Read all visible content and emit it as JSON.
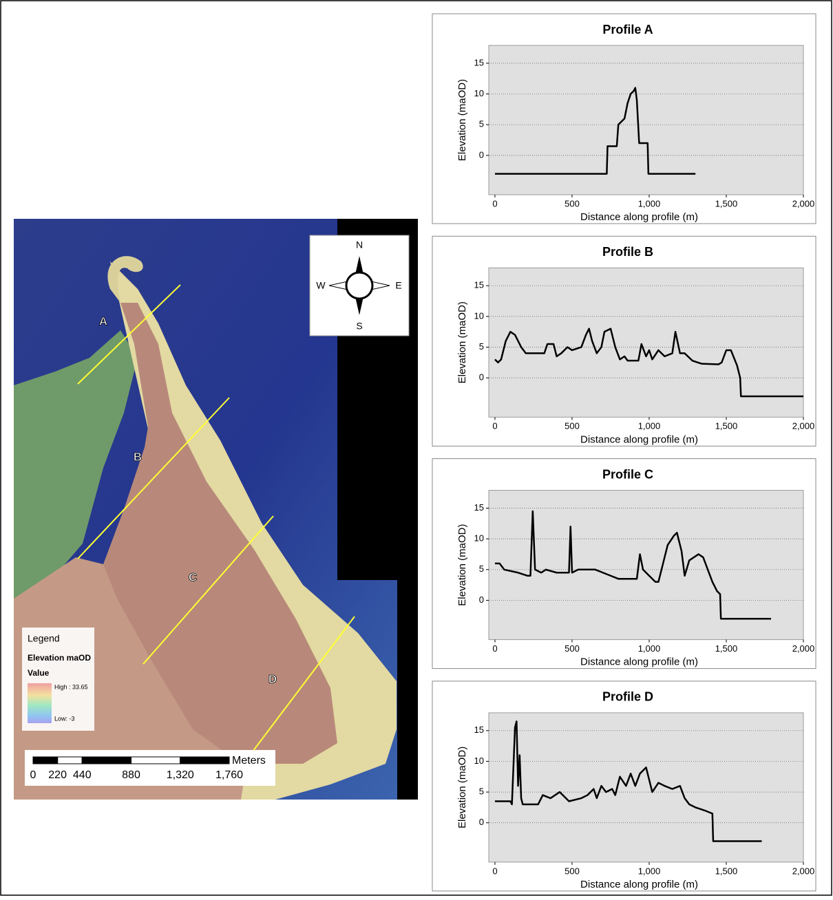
{
  "map": {
    "profile_labels": [
      "A",
      "B",
      "C",
      "D"
    ],
    "compass": {
      "n": "N",
      "e": "E",
      "s": "S",
      "w": "W"
    },
    "legend": {
      "title": "Legend",
      "layer": "Elevation maOD",
      "field": "Value",
      "high": "High : 33.65",
      "low": "Low: -3"
    },
    "scale": {
      "unit": "Meters",
      "lim": [
        0,
        1760
      ],
      "ticks": [
        0,
        220,
        440,
        880,
        {
          "value": 1320,
          "label": "1,320"
        },
        {
          "value": 1760,
          "label": "1,760"
        }
      ]
    }
  },
  "chart_data": [
    {
      "type": "line",
      "title": "Profile A",
      "x_label": "Distance along profile (m)",
      "y_label": "Elevation (maOD)",
      "color": "#000000",
      "grid": true,
      "xlim": [
        -40,
        2000
      ],
      "ylim": [
        -6.4,
        17.9
      ],
      "xticks": [
        0,
        500,
        {
          "value": 1000,
          "label": "1,000"
        },
        {
          "value": 1500,
          "label": "1,500"
        },
        {
          "value": 2000,
          "label": "2,000"
        }
      ],
      "yticks": [
        0,
        5,
        10,
        15
      ],
      "x": [
        0,
        725,
        730,
        790,
        800,
        840,
        860,
        880,
        900,
        910,
        920,
        935,
        990,
        995,
        1300
      ],
      "values": [
        -3,
        -3,
        1.5,
        1.5,
        5,
        6,
        8.5,
        10,
        10.5,
        11,
        9,
        2,
        2,
        -3,
        -3
      ]
    },
    {
      "type": "line",
      "title": "Profile B",
      "x_label": "Distance along profile (m)",
      "y_label": "Elevation (maOD)",
      "color": "#000000",
      "grid": true,
      "xlim": [
        -40,
        2000
      ],
      "ylim": [
        -6.4,
        17.9
      ],
      "xticks": [
        0,
        500,
        {
          "value": 1000,
          "label": "1,000"
        },
        {
          "value": 1500,
          "label": "1,500"
        },
        {
          "value": 2000,
          "label": "2,000"
        }
      ],
      "yticks": [
        0,
        5,
        10,
        15
      ],
      "x": [
        0,
        20,
        40,
        70,
        100,
        130,
        170,
        200,
        320,
        340,
        380,
        400,
        430,
        470,
        500,
        560,
        590,
        610,
        630,
        660,
        690,
        710,
        750,
        780,
        810,
        840,
        860,
        930,
        950,
        980,
        1000,
        1020,
        1060,
        1100,
        1150,
        1170,
        1200,
        1230,
        1280,
        1340,
        1450,
        1470,
        1500,
        1530,
        1570,
        1590,
        1595,
        2000
      ],
      "values": [
        3,
        2.5,
        3,
        6,
        7.5,
        7,
        5,
        4,
        4,
        5.5,
        5.5,
        3.5,
        4,
        5,
        4.5,
        5,
        7,
        8,
        6,
        4,
        5,
        7.5,
        8,
        5,
        3,
        3.5,
        2.8,
        2.8,
        5.5,
        3.5,
        4.5,
        3,
        4.5,
        3.5,
        4,
        7.5,
        4,
        4,
        2.8,
        2.3,
        2.2,
        2.5,
        4.5,
        4.5,
        2,
        0,
        -3,
        -3
      ]
    },
    {
      "type": "line",
      "title": "Profile C",
      "x_label": "Distance along profile (m)",
      "y_label": "Elevation (maOD)",
      "color": "#000000",
      "grid": true,
      "xlim": [
        -40,
        2000
      ],
      "ylim": [
        -6.4,
        17.9
      ],
      "xticks": [
        0,
        500,
        {
          "value": 1000,
          "label": "1,000"
        },
        {
          "value": 1500,
          "label": "1,500"
        },
        {
          "value": 2000,
          "label": "2,000"
        }
      ],
      "yticks": [
        0,
        5,
        10,
        15
      ],
      "x": [
        0,
        30,
        60,
        150,
        210,
        230,
        245,
        260,
        300,
        330,
        400,
        480,
        490,
        500,
        540,
        650,
        700,
        800,
        920,
        940,
        960,
        1000,
        1040,
        1060,
        1090,
        1120,
        1160,
        1180,
        1210,
        1230,
        1260,
        1290,
        1320,
        1350,
        1380,
        1410,
        1440,
        1460,
        1465,
        1790
      ],
      "values": [
        6,
        6,
        5,
        4.5,
        4,
        4,
        14.5,
        5,
        4.5,
        5,
        4.5,
        4.5,
        12,
        4.5,
        5,
        5,
        4.5,
        3.5,
        3.5,
        7.5,
        5,
        4,
        3,
        3,
        6,
        9,
        10.5,
        11,
        8,
        4,
        6.5,
        7,
        7.5,
        7,
        5,
        3,
        1.5,
        1,
        -3,
        -3
      ]
    },
    {
      "type": "line",
      "title": "Profile D",
      "x_label": "Distance along profile (m)",
      "y_label": "Elevation (maOD)",
      "color": "#000000",
      "grid": true,
      "xlim": [
        -40,
        2000
      ],
      "ylim": [
        -6.4,
        17.9
      ],
      "xticks": [
        0,
        500,
        {
          "value": 1000,
          "label": "1,000"
        },
        {
          "value": 1500,
          "label": "1,500"
        },
        {
          "value": 2000,
          "label": "2,000"
        }
      ],
      "yticks": [
        0,
        5,
        10,
        15
      ],
      "x": [
        0,
        100,
        110,
        130,
        140,
        150,
        160,
        170,
        180,
        280,
        310,
        360,
        420,
        460,
        480,
        560,
        600,
        640,
        660,
        690,
        720,
        760,
        780,
        810,
        850,
        880,
        910,
        940,
        980,
        1000,
        1020,
        1060,
        1100,
        1150,
        1200,
        1230,
        1260,
        1300,
        1360,
        1410,
        1415,
        1730
      ],
      "values": [
        3.5,
        3.5,
        3,
        15.5,
        16.5,
        6,
        11,
        4,
        3,
        3,
        4.5,
        4,
        5,
        4,
        3.5,
        4,
        4.5,
        5.5,
        4,
        6,
        5,
        5.5,
        4.5,
        7.5,
        6,
        8,
        6,
        8,
        9,
        7,
        5,
        6.5,
        6,
        5.5,
        6,
        4,
        3,
        2.5,
        2,
        1.5,
        -3,
        -3
      ]
    }
  ]
}
